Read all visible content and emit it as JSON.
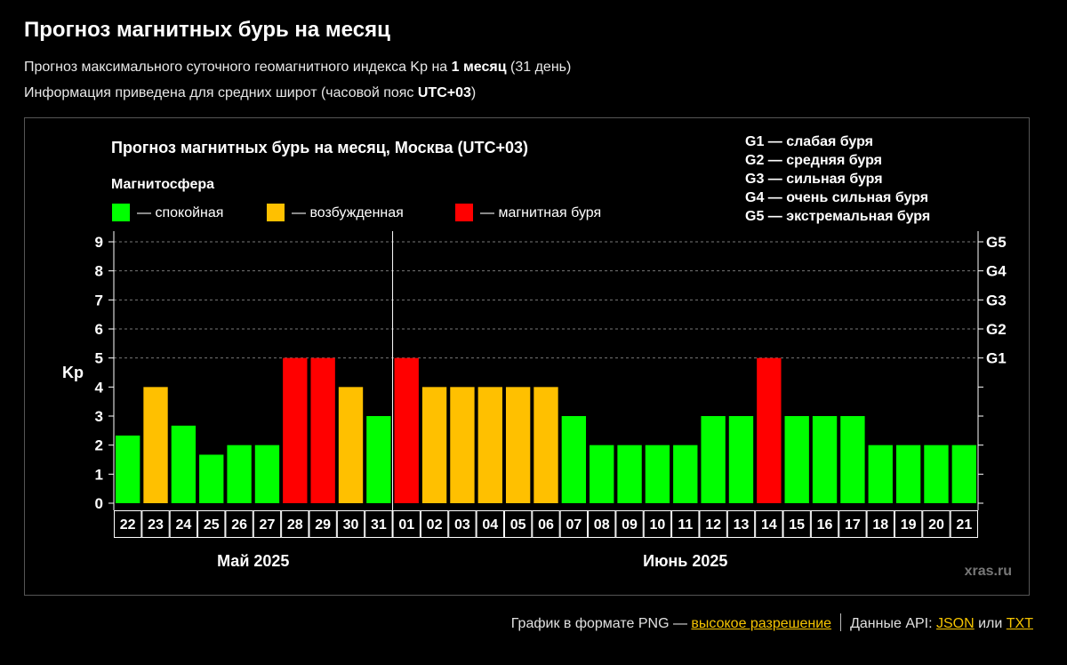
{
  "page": {
    "title": "Прогноз магнитных бурь на месяц",
    "sub1_pre": "Прогноз максимального суточного геомагнитного индекса Kp на ",
    "sub1_bold": "1 месяц",
    "sub1_post": " (31 день)",
    "sub2_pre": "Информация приведена для средних широт (часовой пояс ",
    "sub2_bold": "UTC+03",
    "sub2_post": ")"
  },
  "footer": {
    "png_text": "График в формате PNG — ",
    "png_link": "высокое разрешение",
    "api_text": "Данные API: ",
    "json_link": "JSON",
    "or_text": " или ",
    "txt_link": "TXT"
  },
  "colors": {
    "calm": "#00ff00",
    "excited": "#ffc000",
    "storm": "#ff0000",
    "grid": "#777777"
  },
  "chart_data": {
    "type": "bar",
    "title": "Прогноз магнитных бурь на месяц, Москва (UTC+03)",
    "legend_title": "Магнитосфера",
    "legend": [
      {
        "key": "calm",
        "label": "— спокойная"
      },
      {
        "key": "excited",
        "label": "— возбужденная"
      },
      {
        "key": "storm",
        "label": "— магнитная буря"
      }
    ],
    "g_legend": [
      "G1 — слабая буря",
      "G2 — средняя буря",
      "G3 — сильная буря",
      "G4 — очень сильная буря",
      "G5 — экстремальная буря"
    ],
    "ylabel": "Kp",
    "ylim": [
      0,
      9
    ],
    "yticks": [
      "0",
      "1",
      "2",
      "3",
      "4",
      "5",
      "6",
      "7",
      "8",
      "9"
    ],
    "right_ticks": [
      {
        "value": 5,
        "label": "G1"
      },
      {
        "value": 6,
        "label": "G2"
      },
      {
        "value": 7,
        "label": "G3"
      },
      {
        "value": 8,
        "label": "G4"
      },
      {
        "value": 9,
        "label": "G5"
      }
    ],
    "categories": [
      "22",
      "23",
      "24",
      "25",
      "26",
      "27",
      "28",
      "29",
      "30",
      "31",
      "01",
      "02",
      "03",
      "04",
      "05",
      "06",
      "07",
      "08",
      "09",
      "10",
      "11",
      "12",
      "13",
      "14",
      "15",
      "16",
      "17",
      "18",
      "19",
      "20",
      "21"
    ],
    "values": [
      2.33,
      4,
      2.67,
      1.67,
      2,
      2,
      5,
      5,
      4,
      3,
      5,
      4,
      4,
      4,
      4,
      4,
      3,
      2,
      2,
      2,
      2,
      3,
      3,
      5,
      3,
      3,
      3,
      2,
      2,
      2,
      2
    ],
    "states": [
      "calm",
      "excited",
      "calm",
      "calm",
      "calm",
      "calm",
      "storm",
      "storm",
      "excited",
      "calm",
      "storm",
      "excited",
      "excited",
      "excited",
      "excited",
      "excited",
      "calm",
      "calm",
      "calm",
      "calm",
      "calm",
      "calm",
      "calm",
      "storm",
      "calm",
      "calm",
      "calm",
      "calm",
      "calm",
      "calm",
      "calm"
    ],
    "months": [
      {
        "label": "Май 2025",
        "from": 0,
        "to": 9
      },
      {
        "label": "Июнь 2025",
        "from": 10,
        "to": 30
      }
    ],
    "watermark": "xras.ru",
    "grid": true
  }
}
